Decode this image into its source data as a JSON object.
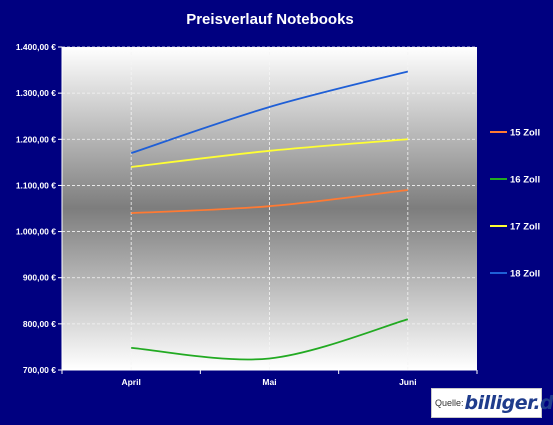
{
  "chart_data": {
    "type": "line",
    "title": "Preisverlauf Notebooks",
    "categories": [
      "April",
      "Mai",
      "Juni"
    ],
    "ylim": [
      700,
      1400
    ],
    "yticks": [
      700,
      800,
      900,
      1000,
      1100,
      1200,
      1300,
      1400
    ],
    "ytick_labels": [
      "700,00 €",
      "800,00 €",
      "900,00 €",
      "1.000,00 €",
      "1.100,00 €",
      "1.200,00 €",
      "1.300,00 €",
      "1.400,00 €"
    ],
    "grid": true,
    "legend": "right",
    "series": [
      {
        "name": "15 Zoll",
        "values": [
          1040,
          1055,
          1090
        ],
        "color": "#ff7a33"
      },
      {
        "name": "16 Zoll",
        "values": [
          748,
          725,
          810
        ],
        "color": "#22aa22"
      },
      {
        "name": "17 Zoll",
        "values": [
          1140,
          1175,
          1200
        ],
        "color": "#ffff33"
      },
      {
        "name": "18 Zoll",
        "values": [
          1170,
          1270,
          1347
        ],
        "color": "#1f5fd6"
      }
    ]
  },
  "source": {
    "label": "Quelle:",
    "logo_text": "billiger.de",
    "logo_color": "#1f3c8c",
    "logo_accent": "#ff6600"
  }
}
